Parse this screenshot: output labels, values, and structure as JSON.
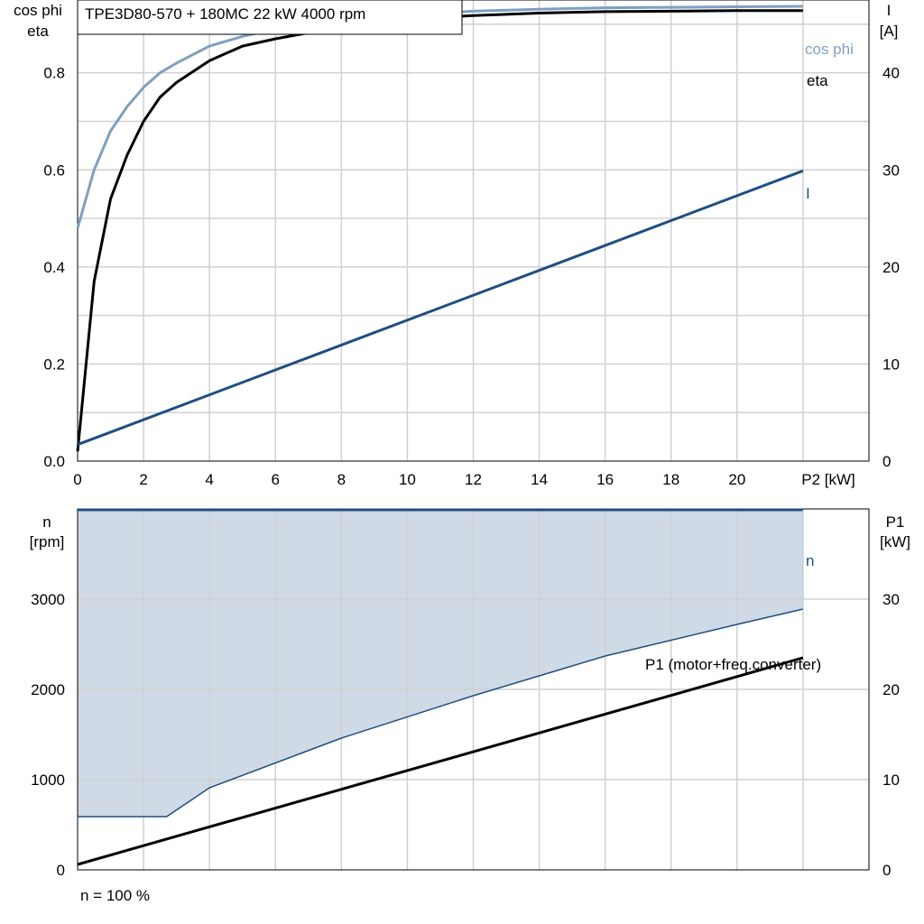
{
  "chart_data": [
    {
      "type": "line",
      "title": "TPE3D80-570 + 180MC   22 kW   4000 rpm",
      "xlabel": "P2 [kW]",
      "ylabel_left_line1": "cos phi",
      "ylabel_left_line2": "eta",
      "ylabel_right_line1": "I",
      "ylabel_right_line2": "[A]",
      "xlim": [
        0,
        24
      ],
      "ylim_left": [
        0,
        0.95
      ],
      "ylim_right": [
        0,
        47.5
      ],
      "x_ticks": [
        0,
        2,
        4,
        6,
        8,
        10,
        12,
        14,
        16,
        18,
        20
      ],
      "x_tick_labels": [
        "0",
        "2",
        "4",
        "6",
        "8",
        "10",
        "12",
        "14",
        "16",
        "18",
        "20"
      ],
      "y_left_ticks": [
        0,
        0.2,
        0.4,
        0.6,
        0.8
      ],
      "y_left_tick_labels": [
        "0.0",
        "0.2",
        "0.4",
        "0.6",
        "0.8"
      ],
      "y_right_ticks": [
        0,
        10,
        20,
        30,
        40
      ],
      "y_right_tick_labels": [
        "0",
        "10",
        "20",
        "30",
        "40"
      ],
      "grid": true,
      "series": [
        {
          "name": "cos phi",
          "axis": "left",
          "color": "#7f9fbf",
          "x": [
            0,
            0.5,
            1,
            1.5,
            2,
            2.5,
            3,
            4,
            5,
            6,
            8,
            10,
            12,
            14,
            16,
            18,
            20,
            22
          ],
          "y": [
            0.48,
            0.6,
            0.68,
            0.73,
            0.77,
            0.8,
            0.82,
            0.855,
            0.875,
            0.89,
            0.91,
            0.92,
            0.927,
            0.931,
            0.934,
            0.935,
            0.936,
            0.937
          ]
        },
        {
          "name": "eta",
          "axis": "left",
          "color": "#000000",
          "x": [
            0,
            0.5,
            1,
            1.5,
            2,
            2.5,
            3,
            4,
            5,
            6,
            8,
            10,
            12,
            14,
            16,
            18,
            20,
            22
          ],
          "y": [
            0.02,
            0.37,
            0.54,
            0.63,
            0.7,
            0.75,
            0.78,
            0.825,
            0.855,
            0.87,
            0.895,
            0.91,
            0.918,
            0.923,
            0.926,
            0.927,
            0.928,
            0.928
          ]
        },
        {
          "name": "I",
          "axis": "right",
          "color": "#1f4e7f",
          "x": [
            0,
            22
          ],
          "y": [
            1.7,
            29.9
          ]
        }
      ]
    },
    {
      "type": "area",
      "xlim": [
        0,
        24
      ],
      "ylim_left": [
        0,
        4000
      ],
      "ylim_right": [
        0,
        40
      ],
      "ylabel_left_line1": "n",
      "ylabel_left_line2": "[rpm]",
      "ylabel_right_line1": "P1",
      "ylabel_right_line2": "[kW]",
      "y_left_ticks": [
        0,
        1000,
        2000,
        3000
      ],
      "y_left_tick_labels": [
        "0",
        "1000",
        "2000",
        "3000"
      ],
      "y_right_ticks": [
        0,
        10,
        20,
        30
      ],
      "y_right_tick_labels": [
        "0",
        "10",
        "20",
        "30"
      ],
      "grid": true,
      "footnote": "n = 100 %",
      "fill_color": "#cfdae6",
      "series": [
        {
          "name": "n",
          "axis": "left",
          "color": "#1f4e7f",
          "x": [
            0,
            22
          ],
          "y": [
            3990,
            3990
          ]
        },
        {
          "name": "",
          "axis": "left",
          "color": "#1f4e7f",
          "role": "lower-speed-limit",
          "x": [
            0,
            2.7,
            4,
            8,
            12,
            16,
            20,
            22
          ],
          "y": [
            590,
            590,
            910,
            1460,
            1930,
            2370,
            2720,
            2890
          ]
        },
        {
          "name": "P1 (motor+freq.converter)",
          "axis": "right",
          "color": "#000000",
          "x": [
            0,
            22
          ],
          "y": [
            0.6,
            23.5
          ]
        }
      ]
    }
  ]
}
